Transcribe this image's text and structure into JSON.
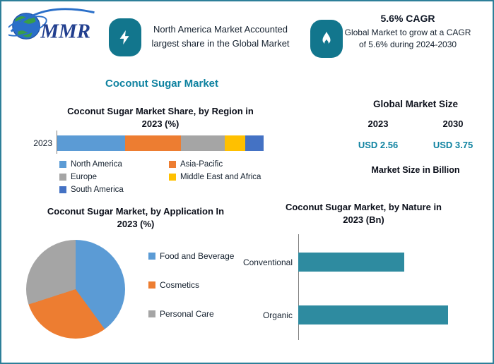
{
  "theme": {
    "accent_teal": "#0E82A0",
    "icon_teal": "#12768D",
    "border_teal": "#2D7F99",
    "bar_teal": "#2E8BA0"
  },
  "header": {
    "logo_text": "MMR",
    "callout_region": {
      "icon": "lightning-icon",
      "text": "North America Market Accounted largest share in the Global Market"
    },
    "callout_cagr": {
      "icon": "flame-icon",
      "title": "5.6% CAGR",
      "text": "Global Market to grow at a CAGR of 5.6% during 2024-2030"
    }
  },
  "title": "Coconut Sugar Market",
  "market_size": {
    "heading": "Global Market Size",
    "years": [
      "2023",
      "2030"
    ],
    "values": [
      "USD 2.56",
      "USD 3.75"
    ],
    "note": "Market Size in Billion"
  },
  "chart_data": [
    {
      "id": "region_share",
      "type": "bar",
      "variant": "stacked-horizontal",
      "title": "Coconut Sugar Market Share, by Region in 2023 (%)",
      "categories": [
        "2023"
      ],
      "series": [
        {
          "name": "North America",
          "color": "#5B9BD5",
          "values": [
            33
          ]
        },
        {
          "name": "Asia-Pacific",
          "color": "#ED7D31",
          "values": [
            27
          ]
        },
        {
          "name": "Europe",
          "color": "#A5A5A5",
          "values": [
            21
          ]
        },
        {
          "name": "Middle East and Africa",
          "color": "#FFC000",
          "values": [
            10
          ]
        },
        {
          "name": "South America",
          "color": "#4472C4",
          "values": [
            9
          ]
        }
      ],
      "xlim": [
        0,
        100
      ],
      "legend_position": "bottom",
      "grid": false
    },
    {
      "id": "application_pie",
      "type": "pie",
      "title": "Coconut Sugar Market, by Application In 2023 (%)",
      "labels": [
        "Food and Beverage",
        "Cosmetics",
        "Personal Care"
      ],
      "values": [
        40,
        30,
        30
      ],
      "colors": [
        "#5B9BD5",
        "#ED7D31",
        "#A5A5A5"
      ],
      "legend_position": "right"
    },
    {
      "id": "nature_bars",
      "type": "bar",
      "variant": "horizontal",
      "title": "Coconut Sugar Market, by Nature in 2023 (Bn)",
      "categories": [
        "Conventional",
        "Organic"
      ],
      "values": [
        1.06,
        1.5
      ],
      "color": "#2E8BA0",
      "xlim": [
        0,
        1.9
      ],
      "grid": false
    }
  ]
}
